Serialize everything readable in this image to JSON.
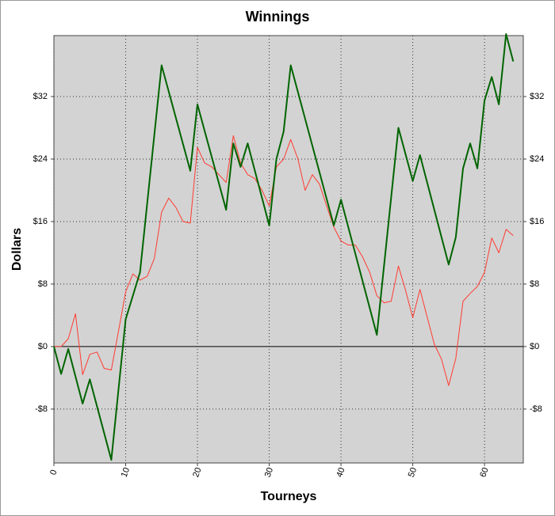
{
  "chart_data": {
    "type": "line",
    "title": "Winnings",
    "x_label": "Tourneys",
    "y_label": "Dollars",
    "xlim": [
      0,
      65.4
    ],
    "xticks": [
      0,
      10,
      20,
      30,
      40,
      50,
      60
    ],
    "ylim": [
      -14.9,
      39.8
    ],
    "yticks": [
      {
        "value": -8,
        "label": "-$8"
      },
      {
        "value": 0,
        "label": "$0"
      },
      {
        "value": 8,
        "label": "$8"
      },
      {
        "value": 16,
        "label": "$16"
      },
      {
        "value": 24,
        "label": "$24"
      },
      {
        "value": 32,
        "label": "$32"
      }
    ],
    "grid": true,
    "background": "#d3d3d3",
    "series": [
      {
        "color": "#ff3b30",
        "width": 1,
        "x": [
          0,
          1,
          2,
          3,
          4,
          5,
          6,
          7,
          8,
          9,
          10,
          11,
          12,
          13,
          14,
          15,
          16,
          17,
          18,
          19,
          20,
          21,
          22,
          23,
          24,
          25,
          26,
          27,
          28,
          29,
          30,
          31,
          32,
          33,
          34,
          35,
          36,
          37,
          38,
          39,
          40,
          41,
          42,
          43,
          44,
          45,
          46,
          47,
          48,
          49,
          50,
          51,
          52,
          53,
          54,
          55,
          56,
          57,
          58,
          59,
          60,
          61,
          62,
          63,
          64
        ],
        "values": [
          0,
          0,
          1,
          4.2,
          -3.6,
          -1,
          -0.7,
          -2.8,
          -3,
          2,
          7,
          9.3,
          8.5,
          9,
          11.3,
          17.2,
          19,
          17.8,
          16,
          15.8,
          25.5,
          23.5,
          23,
          22,
          21,
          27,
          23.5,
          22,
          21.5,
          20,
          18,
          23,
          24,
          26.5,
          24,
          20,
          22,
          20.8,
          18,
          15.3,
          13.5,
          13,
          13,
          11.5,
          9.5,
          6.5,
          5.6,
          5.8,
          10.3,
          7.2,
          3.7,
          7.3,
          3.8,
          0.3,
          -1.6,
          -5,
          -1.5,
          5.8,
          6.8,
          7.7,
          9.5,
          13.9,
          12,
          15,
          14.2
        ]
      },
      {
        "color": "#006400",
        "width": 2,
        "x": [
          0,
          1,
          2,
          4,
          5,
          8,
          10,
          12,
          15,
          19,
          20,
          24,
          25,
          26,
          27,
          30,
          31,
          32,
          33,
          39,
          40,
          45,
          48,
          50,
          51,
          55,
          56,
          57,
          58,
          59,
          60,
          61,
          62,
          63,
          64
        ],
        "values": [
          0,
          -3.5,
          -0.3,
          -7.3,
          -4.2,
          -14.5,
          3.5,
          9.5,
          36,
          22.5,
          31,
          17.5,
          26,
          23,
          26,
          15.5,
          24,
          27.5,
          36,
          15.5,
          18.8,
          1.5,
          28,
          21.2,
          24.5,
          10.5,
          14,
          22.8,
          26,
          22.8,
          31.5,
          34.5,
          31,
          40,
          36.5
        ]
      }
    ]
  }
}
